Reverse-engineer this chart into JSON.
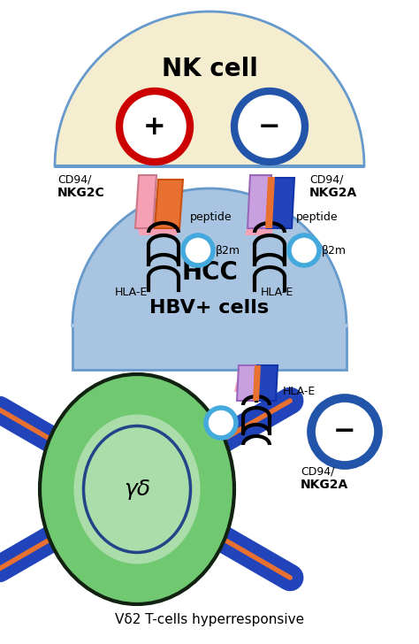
{
  "nk_cell_color": "#F5EDD0",
  "nk_cell_border": "#6699CC",
  "nk_cell_label": "NK cell",
  "plus_circle_color": "#CC0000",
  "minus_circle_nk_color": "#2255AA",
  "hcc_cell_color": "#A8C4E0",
  "hcc_cell_border": "#6699CC",
  "hcc_label1": "HCC",
  "hcc_label2": "HBV+ cells",
  "gamma_delta_outer_color": "#5BA85A",
  "gamma_delta_inner_color": "#A8DD88",
  "gamma_delta_border": "#223322",
  "gamma_delta_inner_border": "#224488",
  "gamma_delta_label": "γδ",
  "vdelta2_label": "Vδ2 T-cells hyperresponsive",
  "cd94_nkg2c_label1": "CD94/",
  "cd94_nkg2c_label2": "NKG2C",
  "cd94_nkg2a_label1": "CD94/",
  "cd94_nkg2a_label2": "NKG2A",
  "peptide_label": "peptide",
  "beta2m_label": "β2m",
  "hla_e_label": "HLA-E"
}
